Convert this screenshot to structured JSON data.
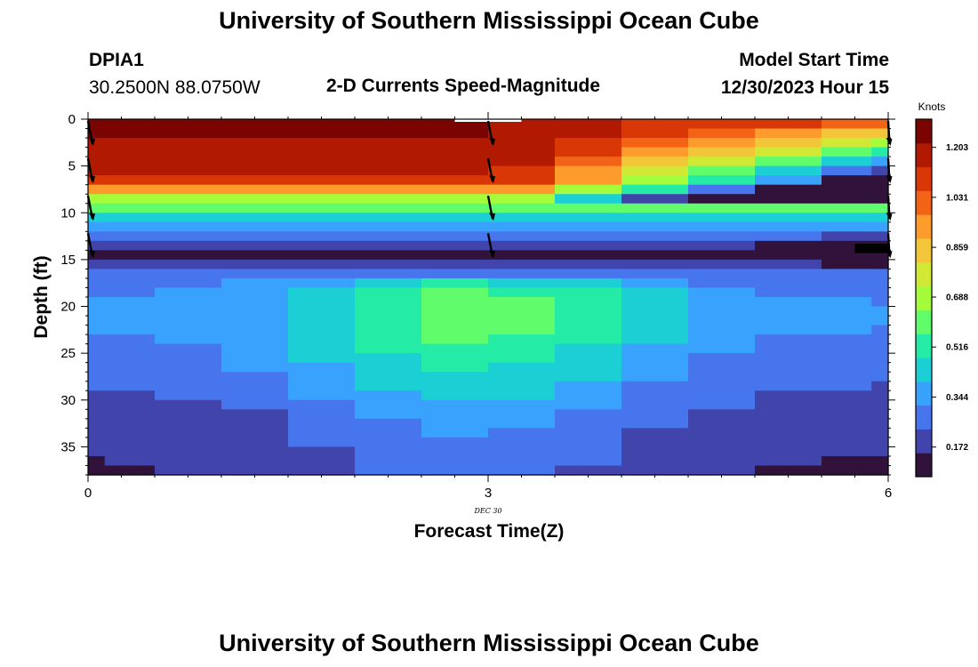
{
  "header": {
    "title_top": "University of Southern Mississippi Ocean Cube",
    "title_bottom": "University of Southern Mississippi Ocean Cube",
    "station": "DPIA1",
    "location": "30.2500N  88.0750W",
    "subtitle": "2-D Currents Speed-Magnitude",
    "model_start_label": "Model Start Time",
    "model_start_value": "12/30/2023 Hour 15"
  },
  "chart_data": {
    "type": "heatmap",
    "title": "2-D Currents Speed-Magnitude",
    "xlabel": "Forecast Time(Z)",
    "ylabel": "Depth (ft)",
    "xlim": [
      0,
      6
    ],
    "ylim": [
      38,
      0
    ],
    "x_ticks": [
      0,
      3,
      6
    ],
    "x_tick_labels": [
      "0",
      "3",
      "6"
    ],
    "x_date_label": "DEC  30",
    "y_ticks": [
      0,
      5,
      10,
      15,
      20,
      25,
      30,
      35
    ],
    "y_tick_labels": [
      "0",
      "5",
      "10",
      "15",
      "20",
      "25",
      "30",
      "35"
    ],
    "time_columns": [
      0,
      0.25,
      0.75,
      1.25,
      1.75,
      2.25,
      2.75,
      3.25,
      3.75,
      4.25,
      4.75,
      5.25,
      5.75,
      6
    ],
    "depth_rows": [
      0,
      1,
      2,
      3,
      4,
      5,
      6,
      7,
      8,
      9,
      10,
      11,
      12,
      13,
      14,
      15,
      16,
      17,
      18,
      19,
      20,
      21,
      22,
      23,
      24,
      25,
      26,
      27,
      28,
      29,
      30,
      31,
      32,
      33,
      34,
      35,
      36,
      37
    ],
    "speed_knots_profile_column_0": [
      1.22,
      1.22,
      1.21,
      1.2,
      1.18,
      1.15,
      1.12,
      0.95,
      0.72,
      0.58,
      0.45,
      0.35,
      0.28,
      0.18,
      0.12,
      0.2,
      0.3,
      0.38,
      0.44,
      0.46,
      0.47,
      0.47,
      0.46,
      0.44,
      0.42,
      0.4,
      0.38,
      0.36,
      0.34,
      0.32,
      0.3,
      0.28,
      0.26,
      0.25,
      0.24,
      0.23,
      0.22,
      0.21
    ],
    "colorbar": {
      "label": "Knots",
      "ticks": [
        1.203,
        1.031,
        0.859,
        0.688,
        0.516,
        0.344,
        0.172
      ],
      "tick_labels": [
        "1.203",
        "1.031",
        "0.859",
        "0.688",
        "0.516",
        "0.344",
        "0.172"
      ],
      "range": [
        0.07,
        1.3
      ],
      "colors": [
        "#30123b",
        "#4145ab",
        "#4675ed",
        "#39a2fc",
        "#1bcfd4",
        "#24eca6",
        "#61fc6c",
        "#a4fc3b",
        "#d1e834",
        "#f3c63a",
        "#fe9b2d",
        "#f36315",
        "#d93806",
        "#b11901",
        "#7a0402"
      ]
    },
    "vector_times": [
      0,
      3,
      6
    ],
    "vector_depths": [
      0,
      4,
      8,
      12
    ]
  }
}
